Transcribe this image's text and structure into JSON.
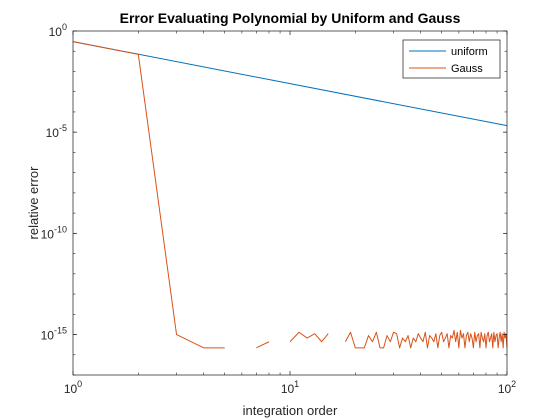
{
  "chart_data": {
    "type": "line",
    "title": "Error Evaluating Polynomial by Uniform and Gauss",
    "xlabel": "integration order",
    "ylabel": "relative error",
    "xscale": "log",
    "yscale": "log",
    "xlim": [
      1,
      100
    ],
    "ylim": [
      1e-17,
      1
    ],
    "x_ticks": [
      {
        "value": 1,
        "base": "10",
        "exp": "0"
      },
      {
        "value": 10,
        "base": "10",
        "exp": "1"
      },
      {
        "value": 100,
        "base": "10",
        "exp": "2"
      }
    ],
    "y_ticks": [
      {
        "value": 1,
        "base": "10",
        "exp": "0"
      },
      {
        "value": 1e-05,
        "base": "10",
        "exp": "-5"
      },
      {
        "value": 1e-10,
        "base": "10",
        "exp": "-10"
      },
      {
        "value": 1e-15,
        "base": "10",
        "exp": "-15"
      }
    ],
    "grid": false,
    "legend_position": "top-right",
    "series": [
      {
        "name": "uniform",
        "color": "#0072BD",
        "x": [
          1,
          100
        ],
        "y": [
          0.3,
          2.1e-05
        ]
      },
      {
        "name": "Gauss",
        "color": "#D95319",
        "x": [
          1,
          2,
          3,
          4,
          5,
          6,
          7,
          8,
          9,
          10,
          11,
          12,
          13,
          14,
          15,
          16,
          17,
          18,
          19,
          20,
          21,
          22,
          23,
          24,
          25,
          26,
          27,
          28,
          29,
          30,
          31,
          32,
          33,
          34,
          35,
          36,
          37,
          38,
          39,
          40,
          41,
          42,
          43,
          44,
          45,
          46,
          47,
          48,
          49,
          50,
          51,
          52,
          53,
          54,
          55,
          56,
          57,
          58,
          59,
          60,
          61,
          62,
          63,
          64,
          65,
          66,
          67,
          68,
          69,
          70,
          71,
          72,
          73,
          74,
          75,
          76,
          77,
          78,
          79,
          80,
          81,
          82,
          83,
          84,
          85,
          86,
          87,
          88,
          89,
          90,
          91,
          92,
          93,
          94,
          95,
          96,
          97,
          98,
          99,
          100
        ],
        "y": [
          0.3,
          0.07,
          1e-15,
          2.2e-16,
          2.2e-16,
          null,
          2.2e-16,
          4.4e-16,
          null,
          4.4e-16,
          1.3e-15,
          6.7e-16,
          1.1e-15,
          4.4e-16,
          1.1e-15,
          null,
          null,
          4.4e-16,
          1.3e-15,
          2.2e-16,
          2.2e-16,
          2.2e-16,
          8.9e-16,
          4.4e-16,
          1.3e-15,
          2.2e-16,
          2.2e-16,
          8.9e-16,
          4.4e-16,
          1.3e-15,
          1.1e-15,
          2.2e-16,
          6.7e-16,
          4.4e-16,
          8.9e-16,
          2.2e-16,
          6.7e-16,
          4.4e-16,
          1.1e-15,
          6.7e-16,
          4.4e-16,
          1.3e-15,
          2.2e-16,
          8.9e-16,
          6.7e-16,
          4.4e-16,
          1.1e-15,
          2.2e-16,
          8.9e-16,
          1.3e-15,
          4.4e-16,
          6.7e-16,
          1.1e-15,
          2.2e-16,
          8.9e-16,
          6.7e-16,
          1.6e-15,
          4.4e-16,
          1.3e-15,
          2.2e-16,
          1.6e-15,
          6.7e-16,
          1.1e-15,
          2.2e-16,
          8.9e-16,
          1.3e-15,
          4.4e-16,
          1.1e-15,
          6.7e-16,
          2.2e-16,
          1.3e-15,
          4.4e-16,
          8.9e-16,
          1.1e-15,
          2.2e-16,
          1.3e-15,
          6.7e-16,
          4.4e-16,
          1.1e-15,
          2.2e-16,
          8.9e-16,
          1.3e-15,
          4.4e-16,
          6.7e-16,
          1.1e-15,
          2.2e-16,
          1.3e-15,
          4.4e-16,
          8.9e-16,
          1.1e-15,
          2.2e-16,
          6.7e-16,
          1.3e-15,
          4.4e-16,
          1.1e-15,
          2.2e-16,
          1.3e-15,
          6.7e-16,
          1.1e-15,
          2.2e-16
        ]
      }
    ]
  }
}
